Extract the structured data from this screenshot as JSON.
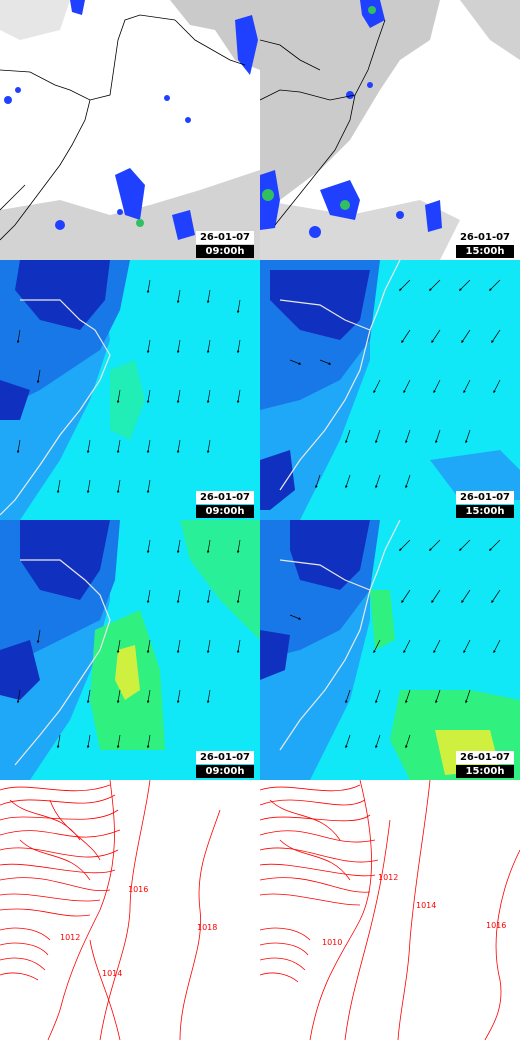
{
  "colors": {
    "cloud_gray": "#b4b4b4",
    "precip_blue": "#2040ff",
    "precip_green": "#30c060",
    "humidity_dark_blue": "#1030c0",
    "humidity_blue": "#1878e8",
    "humidity_light_blue": "#20a8f8",
    "humidity_cyan": "#10e8f8",
    "humidity_green": "#30f080",
    "humidity_yellow": "#d0f040",
    "isobar_red": "#ff0000",
    "coastline": "#000000"
  },
  "rows": [
    {
      "panels": [
        {
          "name": "precip-0900",
          "date": "26-01-07",
          "time": "09:00h"
        },
        {
          "name": "precip-1500",
          "date": "26-01-07",
          "time": "15:00h"
        }
      ]
    },
    {
      "panels": [
        {
          "name": "humidity-upper-0900",
          "date": "26-01-07",
          "time": "09:00h"
        },
        {
          "name": "humidity-upper-1500",
          "date": "26-01-07",
          "time": "15:00h"
        }
      ]
    },
    {
      "panels": [
        {
          "name": "humidity-lower-0900",
          "date": "26-01-07",
          "time": "09:00h"
        },
        {
          "name": "humidity-lower-1500",
          "date": "26-01-07",
          "time": "15:00h"
        }
      ]
    },
    {
      "panels": [
        {
          "name": "pressure-0900",
          "labels": [
            "1012",
            "1014",
            "1016",
            "1018"
          ]
        },
        {
          "name": "pressure-1500",
          "labels": [
            "1010",
            "1012",
            "1014",
            "1016"
          ]
        }
      ]
    }
  ]
}
